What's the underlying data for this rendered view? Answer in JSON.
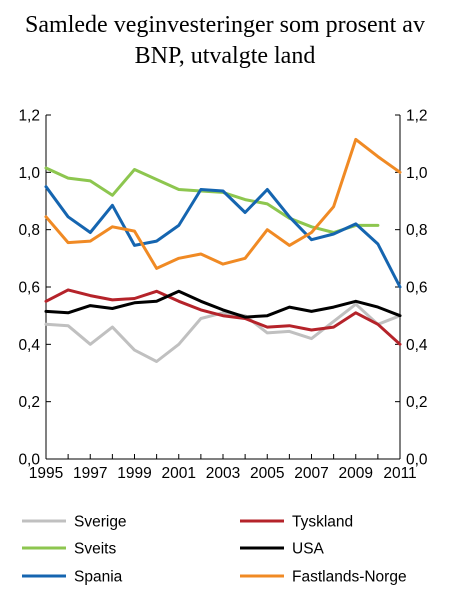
{
  "chart_data": {
    "type": "line",
    "title": "Samlede veginvesteringer som prosent av BNP, utvalgte land",
    "title_lines": [
      "Samlede veginvesteringer som prosent av",
      "BNP, utvalgte land"
    ],
    "xlabel": "",
    "ylabel": "",
    "x": [
      1995,
      1996,
      1997,
      1998,
      1999,
      2000,
      2001,
      2002,
      2003,
      2004,
      2005,
      2006,
      2007,
      2008,
      2009,
      2010,
      2011
    ],
    "x_tick_labels": [
      "1995",
      "1997",
      "1999",
      "2001",
      "2003",
      "2005",
      "2007",
      "2009",
      "2011"
    ],
    "y_tick_labels": [
      "0,0",
      "0,2",
      "0,4",
      "0,6",
      "0,8",
      "1,0",
      "1,2"
    ],
    "ylim": [
      0,
      1.2
    ],
    "xlim": [
      1995,
      2011
    ],
    "grid": false,
    "dual_y_axis": true,
    "legend_position": "bottom",
    "series": [
      {
        "name": "Sverige",
        "color": "#c0c0c0",
        "values": [
          0.47,
          0.465,
          0.4,
          0.46,
          0.38,
          0.34,
          0.4,
          0.49,
          0.51,
          0.5,
          0.44,
          0.445,
          0.42,
          0.48,
          0.54,
          0.47,
          0.5
        ]
      },
      {
        "name": "Tyskland",
        "color": "#b5232a",
        "values": [
          0.55,
          0.59,
          0.57,
          0.555,
          0.56,
          0.585,
          0.55,
          0.52,
          0.5,
          0.49,
          0.46,
          0.465,
          0.45,
          0.46,
          0.51,
          0.47,
          0.4
        ]
      },
      {
        "name": "Sveits",
        "color": "#8dc64f",
        "values": [
          1.015,
          0.98,
          0.97,
          0.92,
          1.01,
          0.975,
          0.94,
          0.935,
          0.93,
          0.905,
          0.89,
          0.84,
          0.81,
          0.79,
          0.815,
          0.815,
          null
        ]
      },
      {
        "name": "USA",
        "color": "#000000",
        "values": [
          0.515,
          0.51,
          0.535,
          0.525,
          0.545,
          0.55,
          0.585,
          0.55,
          0.52,
          0.495,
          0.5,
          0.53,
          0.515,
          0.53,
          0.55,
          0.53,
          0.5
        ]
      },
      {
        "name": "Spania",
        "color": "#1565b0",
        "values": [
          0.95,
          0.845,
          0.79,
          0.885,
          0.745,
          0.76,
          0.815,
          0.94,
          0.935,
          0.86,
          0.94,
          0.845,
          0.765,
          0.785,
          0.82,
          0.75,
          0.6
        ]
      },
      {
        "name": "Fastlands-Norge",
        "color": "#f08a24",
        "values": [
          0.845,
          0.755,
          0.76,
          0.81,
          0.795,
          0.665,
          0.7,
          0.715,
          0.68,
          0.7,
          0.8,
          0.745,
          0.79,
          0.88,
          1.115,
          1.055,
          1.0
        ]
      }
    ]
  }
}
